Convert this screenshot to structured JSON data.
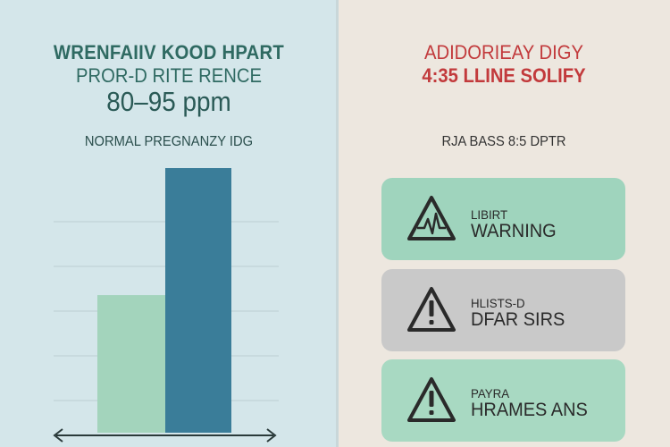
{
  "left": {
    "title_line1": "WRENFAIIV KOOD HPART",
    "title_line2": "PROR-D RITE RENCE",
    "value": "80–95 ppm",
    "caption": "NORMAL PREGNANZY IDG"
  },
  "right": {
    "title_line1": "ADIDORIEAY DIGY",
    "title_line2": "4:35 LLINE SOLIFY",
    "caption": "RJA BASS 8:5 DPTR"
  },
  "cards": [
    {
      "sub": "LIBIRT",
      "main": "WARNING",
      "icon": "heartbeat-warning-icon",
      "bg": "#9fd4bd"
    },
    {
      "sub": "HLISTS-D",
      "main": "DFAR SIRS",
      "icon": "exclamation-warning-icon",
      "bg": "#c9c9c9"
    },
    {
      "sub": "PAYRA",
      "main": "HRAMES ANS",
      "icon": "exclamation-warning-icon",
      "bg": "#a8d9c2"
    }
  ],
  "colors": {
    "left_bg": "#d4e6ea",
    "right_bg": "#ede7df",
    "bar_light": "#a3d4bc",
    "bar_dark": "#3a7d99",
    "alert_red": "#c23a3c"
  },
  "chart_data": {
    "type": "bar",
    "categories": [
      "",
      ""
    ],
    "values": [
      52,
      100
    ],
    "ylim": [
      0,
      110
    ],
    "grid": true,
    "title": "",
    "xlabel": "",
    "ylabel": ""
  }
}
